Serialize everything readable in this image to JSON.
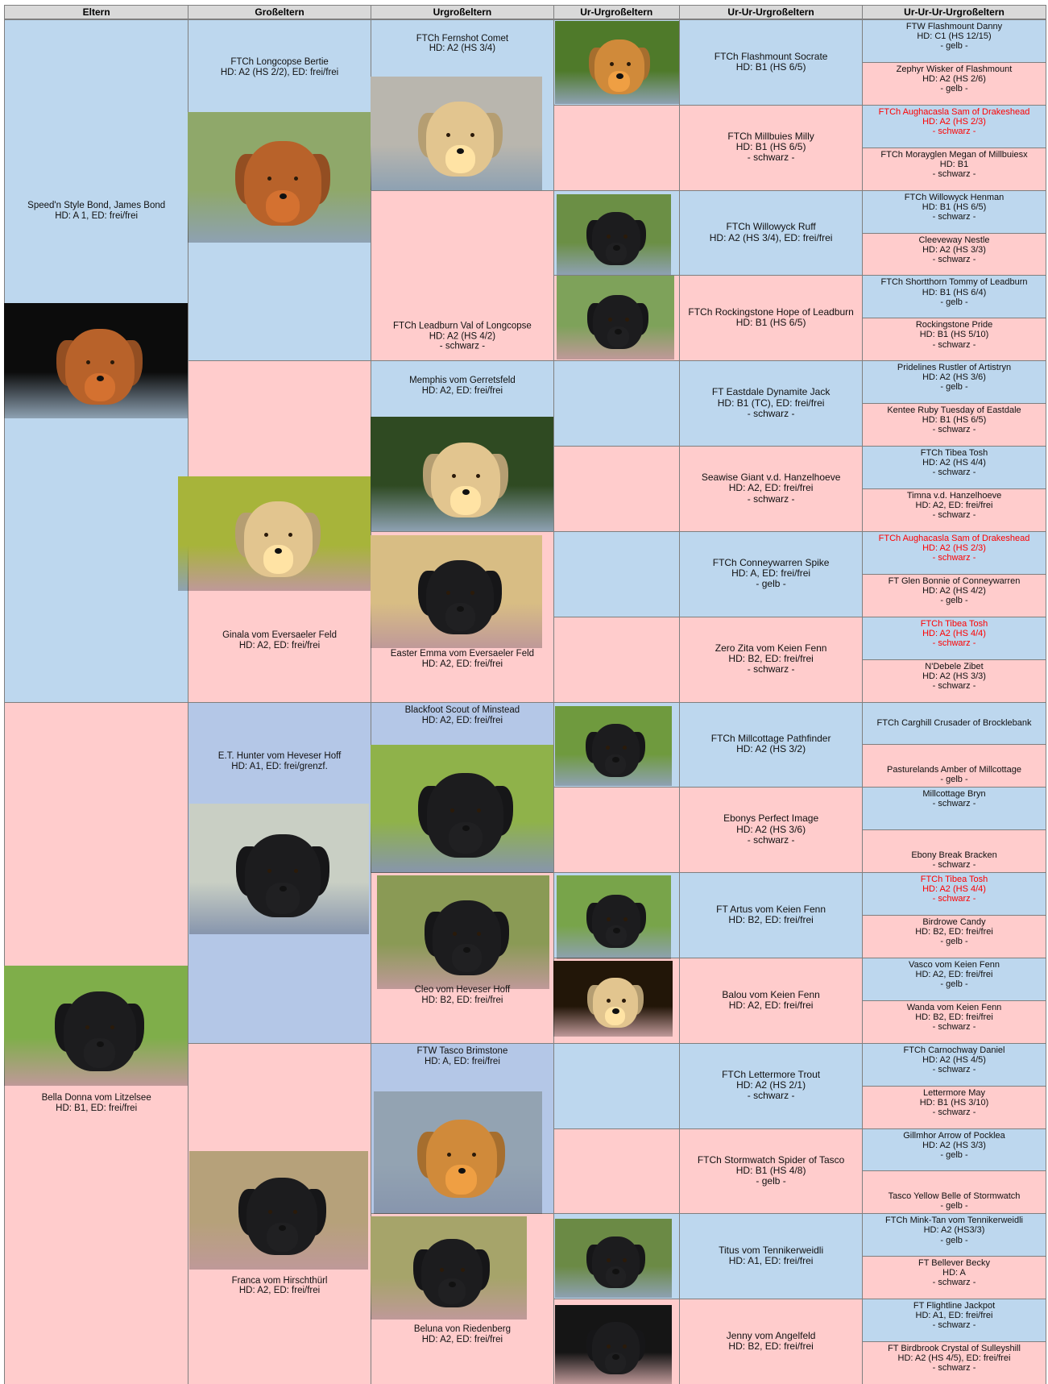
{
  "headers": [
    "Eltern",
    "Großeltern",
    "Urgroßeltern",
    "Ur-Urgroßeltern",
    "Ur-Ur-Urgroßeltern",
    "Ur-Ur-Ur-Urgroßeltern"
  ],
  "generations": [
    [
      {
        "lines": [
          "Speed'n Style Bond, James Bond",
          "HD: A 1, ED: frei/frei"
        ],
        "color": "#bdd7ee"
      },
      {
        "lines": [
          "Bella Donna vom Litzelsee",
          "HD: B1, ED: frei/frei"
        ],
        "color": "#ffcccc"
      }
    ],
    [
      {
        "lines": [
          "FTCh Longcopse Bertie",
          "HD:  A2 (HS 2/2), ED: frei/frei"
        ],
        "color": "#bdd7ee"
      },
      {
        "lines": [
          "Ginala vom Eversaeler Feld",
          "HD: A2, ED: frei/frei"
        ],
        "color": "#ffcccc"
      },
      {
        "lines": [
          "E.T. Hunter vom Heveser Hoff",
          "HD: A1, ED: frei/grenzf."
        ],
        "color": "#b4c7e7"
      },
      {
        "lines": [
          "Franca vom Hirschthürl",
          "HD: A2, ED: frei/frei"
        ],
        "color": "#ffcccc"
      }
    ],
    [
      {
        "lines": [
          "FTCh Fernshot Comet",
          "HD: A2 (HS 3/4)"
        ],
        "color": "#bdd7ee"
      },
      {
        "lines": [
          "FTCh Leadburn Val of Longcopse",
          "HD: A2 (HS 4/2)",
          "- schwarz -"
        ],
        "color": "#ffcccc"
      },
      {
        "lines": [
          "Memphis vom Gerretsfeld",
          "HD: A2, ED: frei/frei"
        ],
        "color": "#bdd7ee"
      },
      {
        "lines": [
          "Easter Emma vom Eversaeler Feld",
          "HD: A2, ED: frei/frei"
        ],
        "color": "#ffcccc"
      },
      {
        "lines": [
          "Blackfoot Scout of Minstead",
          "HD: A2, ED: frei/frei"
        ],
        "color": "#b4c7e7"
      },
      {
        "lines": [
          "Cleo vom Heveser Hoff",
          "HD: B2, ED: frei/frei"
        ],
        "color": "#ffcccc"
      },
      {
        "lines": [
          "FTW Tasco Brimstone",
          "HD: A, ED: frei/frei"
        ],
        "color": "#b4c7e7"
      },
      {
        "lines": [
          "Beluna von Riedenberg",
          "HD: A2, ED: frei/frei"
        ],
        "color": "#ffcccc"
      }
    ],
    [
      {
        "color": "#bdd7ee"
      },
      {
        "color": "#ffcccc"
      },
      {
        "color": "#bdd7ee"
      },
      {
        "color": "#ffcccc"
      },
      {
        "color": "#bdd7ee"
      },
      {
        "color": "#ffcccc"
      },
      {
        "color": "#bdd7ee"
      },
      {
        "color": "#ffcccc"
      },
      {
        "color": "#bdd7ee"
      },
      {
        "color": "#ffcccc"
      },
      {
        "color": "#bdd7ee"
      },
      {
        "color": "#ffcccc"
      },
      {
        "color": "#bdd7ee"
      },
      {
        "color": "#ffcccc"
      },
      {
        "color": "#bdd7ee"
      },
      {
        "color": "#ffcccc"
      }
    ],
    [
      {
        "lines": [
          "FTCh Flashmount Socrate",
          "HD: B1 (HS 6/5)"
        ],
        "color": "#bdd7ee"
      },
      {
        "lines": [
          "FTCh Millbuies Milly",
          "HD: B1 (HS 6/5)",
          "- schwarz -"
        ],
        "color": "#ffcccc"
      },
      {
        "lines": [
          "FTCh Willowyck Ruff",
          "HD: A2 (HS 3/4), ED: frei/frei"
        ],
        "color": "#bdd7ee"
      },
      {
        "lines": [
          "FTCh Rockingstone Hope of Leadburn",
          "HD: B1 (HS 6/5)"
        ],
        "color": "#ffcccc"
      },
      {
        "lines": [
          "FT Eastdale Dynamite Jack",
          "HD: B1 (TC), ED: frei/frei",
          "- schwarz -"
        ],
        "color": "#bdd7ee"
      },
      {
        "lines": [
          "Seawise Giant v.d. Hanzelhoeve",
          "HD: A2, ED: frei/frei",
          "- schwarz -"
        ],
        "color": "#ffcccc"
      },
      {
        "lines": [
          "FTCh Conneywarren Spike",
          "HD: A, ED: frei/frei",
          "- gelb -"
        ],
        "color": "#bdd7ee"
      },
      {
        "lines": [
          "Zero Zita vom Keien Fenn",
          "HD: B2, ED: frei/frei",
          "- schwarz -"
        ],
        "color": "#ffcccc"
      },
      {
        "lines": [
          "FTCh Millcottage Pathfinder",
          "HD: A2 (HS 3/2)"
        ],
        "color": "#bdd7ee"
      },
      {
        "lines": [
          "Ebonys Perfect Image",
          "HD: A2 (HS 3/6)",
          "- schwarz -"
        ],
        "color": "#ffcccc"
      },
      {
        "lines": [
          "FT Artus vom Keien Fenn",
          "HD: B2, ED: frei/frei"
        ],
        "color": "#bdd7ee"
      },
      {
        "lines": [
          "Balou vom Keien Fenn",
          "HD: A2, ED: frei/frei"
        ],
        "color": "#ffcccc"
      },
      {
        "lines": [
          "FTCh Lettermore Trout",
          "HD: A2 (HS 2/1)",
          "- schwarz -"
        ],
        "color": "#bdd7ee"
      },
      {
        "lines": [
          "FTCh Stormwatch Spider of Tasco",
          "HD: B1 (HS 4/8)",
          "- gelb -"
        ],
        "color": "#ffcccc"
      },
      {
        "lines": [
          "Titus vom Tennikerweidli",
          "HD: A1, ED: frei/frei"
        ],
        "color": "#bdd7ee"
      },
      {
        "lines": [
          "Jenny vom Angelfeld",
          "HD: B2, ED: frei/frei"
        ],
        "color": "#ffcccc"
      }
    ],
    [
      {
        "lines": [
          "FTW Flashmount Danny",
          "HD: C1 (HS 12/15)",
          "- gelb -"
        ],
        "color": "#bdd7ee"
      },
      {
        "lines": [
          "Zephyr Wisker of Flashmount",
          "HD: A2 (HS 2/6)",
          "- gelb -"
        ],
        "color": "#ffcccc"
      },
      {
        "lines": [
          "FTCh Aughacasla Sam of Drakeshead",
          "HD: A2 (HS 2/3)",
          "- schwarz -"
        ],
        "color": "#bdd7ee",
        "text_color": "#ff0000"
      },
      {
        "lines": [
          "FTCh Morayglen Megan of Millbuiesx",
          "HD: B1",
          "- schwarz -"
        ],
        "color": "#ffcccc"
      },
      {
        "lines": [
          "FTCh Willowyck Henman",
          "HD: B1 (HS 6/5)",
          "- schwarz -"
        ],
        "color": "#bdd7ee"
      },
      {
        "lines": [
          "Cleeveway Nestle",
          "HD: A2 (HS 3/3)",
          "- schwarz -"
        ],
        "color": "#ffcccc"
      },
      {
        "lines": [
          "FTCh Shortthorn Tommy of Leadburn",
          "HD: B1 (HS 6/4)",
          "- gelb -"
        ],
        "color": "#bdd7ee"
      },
      {
        "lines": [
          "Rockingstone Pride",
          "HD: B1 (HS 5/10)",
          "- schwarz -"
        ],
        "color": "#ffcccc"
      },
      {
        "lines": [
          "Pridelines Rustler of Artistryn",
          "HD: A2 (HS 3/6)",
          "- gelb -"
        ],
        "color": "#bdd7ee"
      },
      {
        "lines": [
          "Kentee Ruby Tuesday of Eastdale",
          "HD: B1 (HS 6/5)",
          "- schwarz -"
        ],
        "color": "#ffcccc"
      },
      {
        "lines": [
          "FTCh Tibea Tosh",
          "HD: A2 (HS 4/4)",
          "- schwarz -"
        ],
        "color": "#bdd7ee"
      },
      {
        "lines": [
          "Timna v.d. Hanzelhoeve",
          "HD: A2, ED: frei/frei",
          "- schwarz -"
        ],
        "color": "#ffcccc"
      },
      {
        "lines": [
          "FTCh Aughacasla Sam of Drakeshead",
          "HD: A2 (HS 2/3)",
          "- schwarz -"
        ],
        "color": "#bdd7ee",
        "text_color": "#ff0000"
      },
      {
        "lines": [
          "FT Glen Bonnie of Conneywarren",
          "HD: A2 (HS 4/2)",
          "- gelb -"
        ],
        "color": "#ffcccc"
      },
      {
        "lines": [
          "FTCh Tibea Tosh",
          "HD: A2 (HS 4/4)",
          "- schwarz -"
        ],
        "color": "#bdd7ee",
        "text_color": "#ff0000"
      },
      {
        "lines": [
          "N'Debele Zibet",
          "HD: A2 (HS 3/3)",
          "- schwarz -"
        ],
        "color": "#ffcccc"
      },
      {
        "lines": [
          "FTCh Carghill Crusader of Brocklebank"
        ],
        "color": "#bdd7ee"
      },
      {
        "lines": [
          "Pasturelands Amber of Millcottage",
          "- gelb -"
        ],
        "color": "#ffcccc"
      },
      {
        "lines": [
          "Millcottage Bryn",
          "- schwarz -"
        ],
        "color": "#bdd7ee"
      },
      {
        "lines": [
          "Ebony Break Bracken",
          "- schwarz -"
        ],
        "color": "#ffcccc"
      },
      {
        "lines": [
          "FTCh Tibea Tosh",
          "HD: A2 (HS 4/4)",
          "- schwarz -"
        ],
        "color": "#bdd7ee",
        "text_color": "#ff0000"
      },
      {
        "lines": [
          "Birdrowe Candy",
          "HD: B2, ED: frei/frei",
          "- gelb -"
        ],
        "color": "#ffcccc"
      },
      {
        "lines": [
          "Vasco vom Keien Fenn",
          "HD: A2, ED: frei/frei",
          "- gelb -"
        ],
        "color": "#bdd7ee"
      },
      {
        "lines": [
          "Wanda vom Keien Fenn",
          "HD: B2, ED: frei/frei",
          "- schwarz -"
        ],
        "color": "#ffcccc"
      },
      {
        "lines": [
          "FTCh Carnochway Daniel",
          "HD: A2 (HS 4/5)",
          "- schwarz -"
        ],
        "color": "#bdd7ee"
      },
      {
        "lines": [
          "Lettermore May",
          "HD: B1 (HS 3/10)",
          "- schwarz -"
        ],
        "color": "#ffcccc"
      },
      {
        "lines": [
          "Gillmhor Arrow of Pocklea",
          "HD: A2 (HS 3/3)",
          "- gelb -"
        ],
        "color": "#bdd7ee"
      },
      {
        "lines": [
          "Tasco Yellow Belle of Stormwatch",
          "- gelb -"
        ],
        "color": "#ffcccc"
      },
      {
        "lines": [
          "FTCh Mink-Tan vom Tennikerweidli",
          "HD: A2 (HS3/3)",
          "- gelb -"
        ],
        "color": "#bdd7ee"
      },
      {
        "lines": [
          "FT Bellever Becky",
          "HD: A",
          "- schwarz -"
        ],
        "color": "#ffcccc"
      },
      {
        "lines": [
          "FT Flightline Jackpot",
          "HD: A1, ED: frei/frei",
          "- schwarz -"
        ],
        "color": "#bdd7ee"
      },
      {
        "lines": [
          "FT Birdbrook Crystal of Sulleyshill",
          "HD: A2 (HS 4/5), ED: frei/frei",
          "- schwarz -"
        ],
        "color": "#ffcccc"
      }
    ]
  ]
}
